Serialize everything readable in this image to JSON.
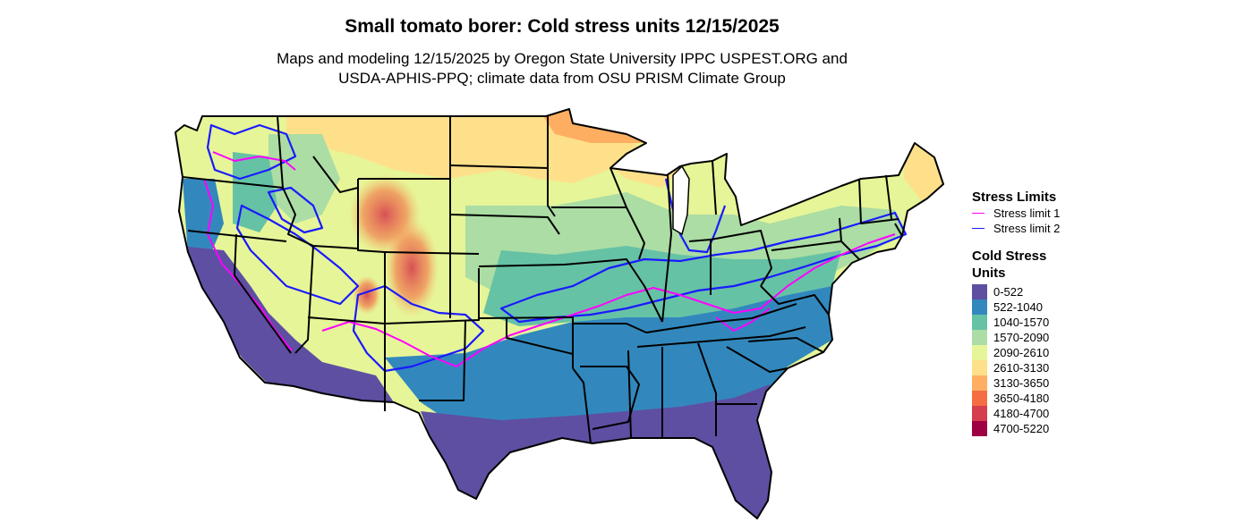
{
  "title": "Small tomato borer: Cold stress units 12/15/2025",
  "subtitle_line1": "Maps and modeling 12/15/2025 by Oregon State University IPPC USPEST.ORG and",
  "subtitle_line2": "USDA-APHIS-PPQ; climate data from OSU PRISM Climate Group",
  "legend_limits": {
    "title": "Stress Limits",
    "items": [
      {
        "label": "Stress limit 1",
        "color": "#ff00ff"
      },
      {
        "label": "Stress limit 2",
        "color": "#1a1aff"
      }
    ]
  },
  "legend_scale": {
    "title": "Cold Stress Units",
    "items": [
      {
        "label": "0-522",
        "color": "#5e4fa2"
      },
      {
        "label": "522-1040",
        "color": "#3288bd"
      },
      {
        "label": "1040-1570",
        "color": "#66c2a5"
      },
      {
        "label": "1570-2090",
        "color": "#abdda4"
      },
      {
        "label": "2090-2610",
        "color": "#e6f598"
      },
      {
        "label": "2610-3130",
        "color": "#fee08b"
      },
      {
        "label": "3130-3650",
        "color": "#fdae61"
      },
      {
        "label": "3650-4180",
        "color": "#f46d43"
      },
      {
        "label": "4180-4700",
        "color": "#d53e4f"
      },
      {
        "label": "4700-5220",
        "color": "#9e0142"
      }
    ]
  }
}
